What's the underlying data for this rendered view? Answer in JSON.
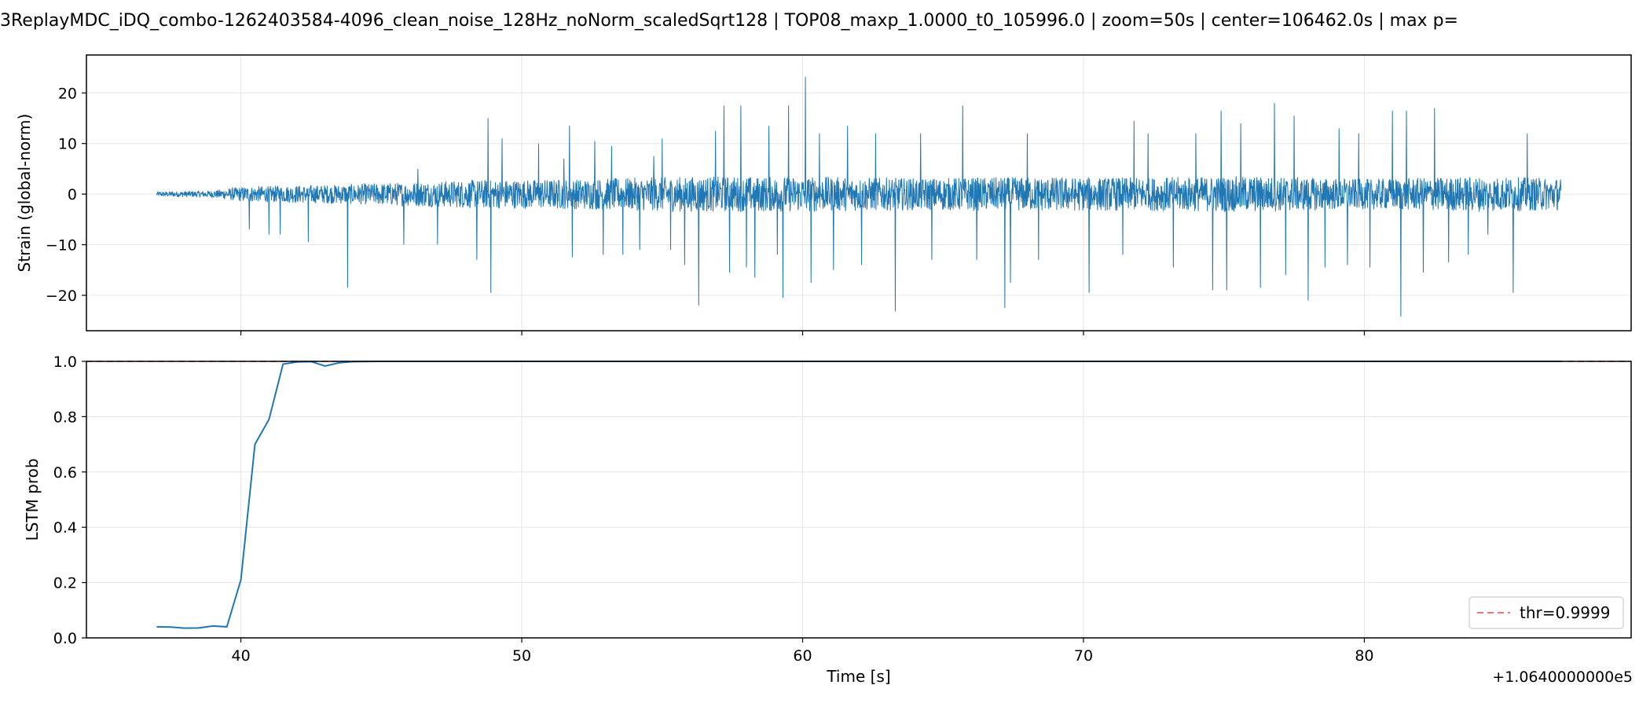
{
  "figure": {
    "title": "3ReplayMDC_iDQ_combo-1262403584-4096_clean_noise_128Hz_noNorm_scaledSqrt128 | TOP08_maxp_1.0000_t0_105996.0 | zoom=50s | center=106462.0s | max p=",
    "x_offset_label": "+1.0640000000e5",
    "xlabel": "Time [s]"
  },
  "chart_data": [
    {
      "type": "line",
      "ylabel": "Strain (global-norm)",
      "xlim": [
        34.5,
        89.5
      ],
      "ylim": [
        -27,
        27.5
      ],
      "xticks": [
        40,
        50,
        60,
        70,
        80
      ],
      "yticks": [
        -20,
        -10,
        0,
        10,
        20
      ],
      "ytick_labels": [
        "−20",
        "−10",
        "0",
        "10",
        "20"
      ],
      "grid": true,
      "series_color": "#1f77b4",
      "x_range": [
        37.0,
        87.0
      ],
      "noise_envelope": [
        [
          37,
          0.5
        ],
        [
          39,
          0.7
        ],
        [
          40,
          1.5
        ],
        [
          44,
          2.0
        ],
        [
          48,
          2.8
        ],
        [
          52,
          3.0
        ],
        [
          56,
          3.5
        ],
        [
          60,
          3.5
        ],
        [
          64,
          3.2
        ],
        [
          68,
          3.4
        ],
        [
          72,
          3.3
        ],
        [
          76,
          3.6
        ],
        [
          80,
          3.0
        ],
        [
          84,
          3.5
        ],
        [
          87,
          3.2
        ]
      ],
      "spikes": [
        [
          40.3,
          6.5
        ],
        [
          40.3,
          -7
        ],
        [
          41.0,
          8.5
        ],
        [
          41.0,
          -8
        ],
        [
          41.4,
          -8
        ],
        [
          42.4,
          7.5
        ],
        [
          42.4,
          -9.5
        ],
        [
          43.8,
          21.8
        ],
        [
          43.8,
          -18.5
        ],
        [
          45.8,
          -10
        ],
        [
          46.3,
          5
        ],
        [
          47.0,
          14.5
        ],
        [
          47.0,
          -10
        ],
        [
          48.4,
          -13
        ],
        [
          48.8,
          15
        ],
        [
          48.9,
          -19.5
        ],
        [
          49.3,
          11
        ],
        [
          50.6,
          10
        ],
        [
          51.5,
          7
        ],
        [
          51.7,
          13.5
        ],
        [
          51.8,
          -12.5
        ],
        [
          52.6,
          10.5
        ],
        [
          52.9,
          -12
        ],
        [
          53.2,
          9.5
        ],
        [
          53.6,
          -12
        ],
        [
          54.2,
          -11
        ],
        [
          54.7,
          7.5
        ],
        [
          55.0,
          11
        ],
        [
          55.3,
          -11
        ],
        [
          55.8,
          -14
        ],
        [
          56.3,
          24.2
        ],
        [
          56.3,
          -22
        ],
        [
          56.9,
          12.5
        ],
        [
          57.2,
          17.5
        ],
        [
          57.4,
          -15.5
        ],
        [
          57.8,
          17.5
        ],
        [
          58.0,
          -14.5
        ],
        [
          58.3,
          -16.5
        ],
        [
          58.8,
          13.5
        ],
        [
          59.1,
          -12
        ],
        [
          59.3,
          -20.5
        ],
        [
          59.5,
          17.5
        ],
        [
          60.1,
          23.2
        ],
        [
          60.3,
          -17.5
        ],
        [
          60.6,
          12
        ],
        [
          61.1,
          -15
        ],
        [
          61.6,
          13.5
        ],
        [
          62.1,
          -14
        ],
        [
          62.6,
          12
        ],
        [
          63.3,
          24.8
        ],
        [
          63.3,
          -23.2
        ],
        [
          64.2,
          12
        ],
        [
          64.6,
          -13
        ],
        [
          65.7,
          17.5
        ],
        [
          66.2,
          -13
        ],
        [
          67.2,
          23.8
        ],
        [
          67.2,
          -22.5
        ],
        [
          67.4,
          -17.5
        ],
        [
          68.0,
          12
        ],
        [
          68.4,
          -13
        ],
        [
          70.2,
          23.0
        ],
        [
          70.2,
          -19.5
        ],
        [
          71.4,
          -12
        ],
        [
          71.8,
          14.5
        ],
        [
          72.3,
          12
        ],
        [
          73.2,
          -14.5
        ],
        [
          74.0,
          12
        ],
        [
          74.6,
          -19
        ],
        [
          74.9,
          16.5
        ],
        [
          75.1,
          -19
        ],
        [
          75.6,
          14
        ],
        [
          76.3,
          -18.5
        ],
        [
          76.8,
          18
        ],
        [
          77.2,
          -16
        ],
        [
          77.5,
          15.5
        ],
        [
          78.0,
          24
        ],
        [
          78.0,
          -21
        ],
        [
          78.6,
          -14.5
        ],
        [
          79.1,
          13
        ],
        [
          79.4,
          -14
        ],
        [
          79.8,
          12
        ],
        [
          80.2,
          -14.5
        ],
        [
          81.0,
          16.5
        ],
        [
          81.3,
          -24.2
        ],
        [
          81.5,
          16.5
        ],
        [
          82.1,
          -15.5
        ],
        [
          82.5,
          17
        ],
        [
          83.0,
          -13.5
        ],
        [
          83.7,
          -12
        ],
        [
          84.4,
          -8
        ],
        [
          85.3,
          21.8
        ],
        [
          85.3,
          -19.5
        ],
        [
          85.8,
          12
        ]
      ]
    },
    {
      "type": "line",
      "ylabel": "LSTM prob",
      "xlabel": "Time [s]",
      "xlim": [
        34.5,
        89.5
      ],
      "ylim": [
        0.0,
        1.0
      ],
      "xticks": [
        40,
        50,
        60,
        70,
        80
      ],
      "xtick_labels": [
        "40",
        "50",
        "60",
        "70",
        "80"
      ],
      "yticks": [
        0.0,
        0.2,
        0.4,
        0.6,
        0.8,
        1.0
      ],
      "ytick_labels": [
        "0.0",
        "0.2",
        "0.4",
        "0.6",
        "0.8",
        "1.0"
      ],
      "grid": true,
      "series_color": "#1f77b4",
      "threshold": {
        "value": 0.9999,
        "color": "#ff0000",
        "label": "thr=0.9999"
      },
      "legend_position": "lower-right",
      "x": [
        37.0,
        37.5,
        38.0,
        38.5,
        39.0,
        39.5,
        40.0,
        40.5,
        41.0,
        41.5,
        42.0,
        42.5,
        43.0,
        43.5,
        44.0,
        45.0,
        50.0,
        60.0,
        70.0,
        80.0,
        87.0
      ],
      "y": [
        0.04,
        0.039,
        0.035,
        0.036,
        0.043,
        0.04,
        0.21,
        0.7,
        0.79,
        0.99,
        0.998,
        0.999,
        0.983,
        0.995,
        0.999,
        1.0,
        1.0,
        1.0,
        1.0,
        1.0,
        1.0
      ]
    }
  ]
}
